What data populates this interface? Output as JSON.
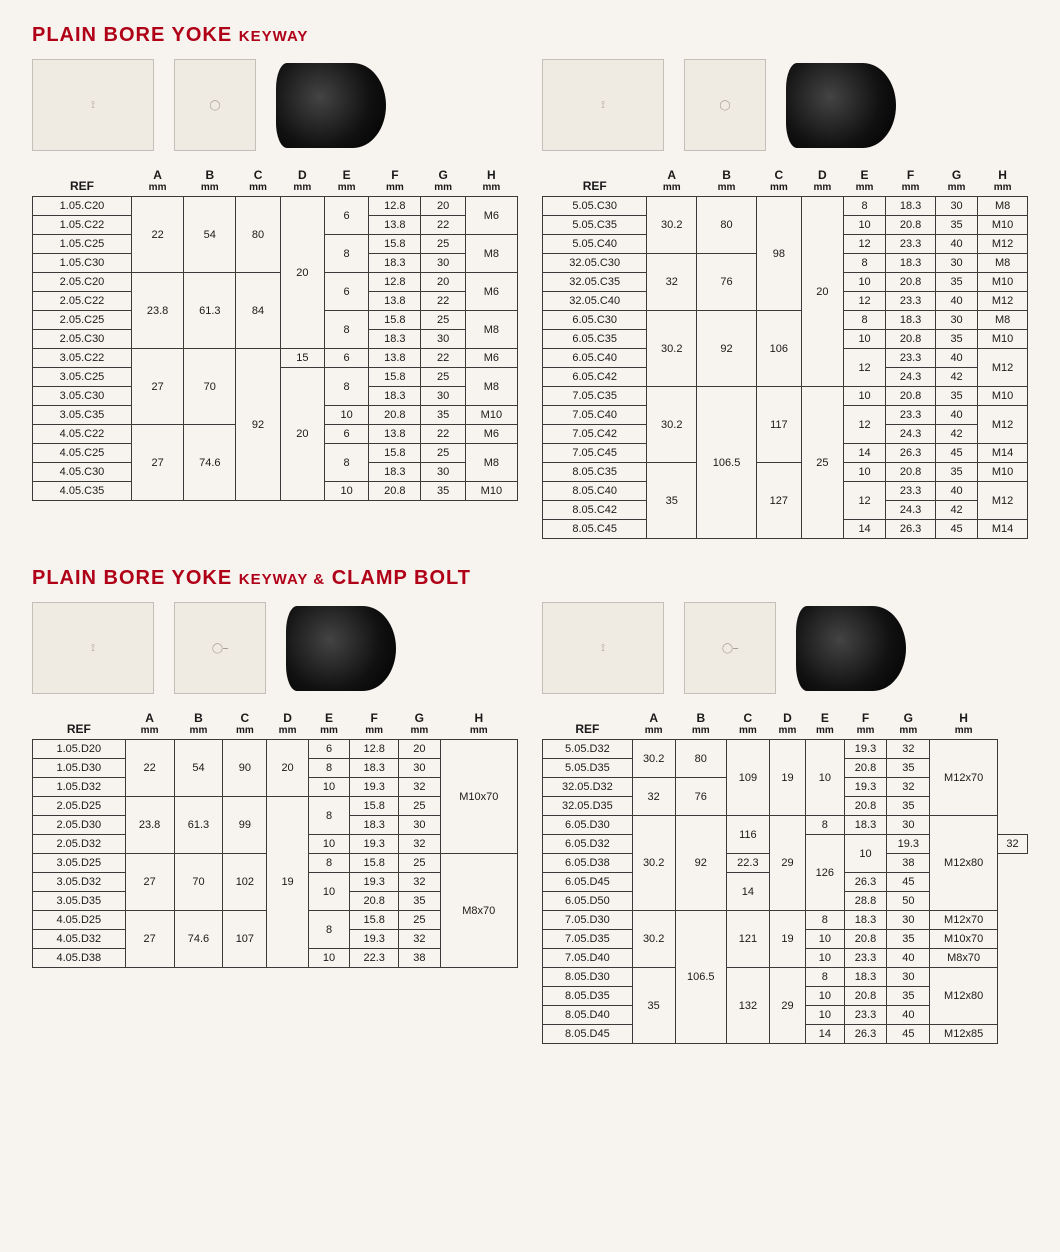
{
  "colors": {
    "title": "#b00018",
    "border": "#3a3a3a",
    "bg": "#f7f3ee"
  },
  "section1": {
    "title_big": "PLAIN BORE YOKE",
    "title_small": "KEYWAY",
    "headers": [
      "REF",
      "A",
      "B",
      "C",
      "D",
      "E",
      "F",
      "G",
      "H"
    ],
    "header_unit": "mm",
    "tableLeft": [
      {
        "ref": "1.05.C20",
        "A": "22",
        "B": "54",
        "C": "80",
        "D": "20",
        "E": "6",
        "F": "12.8",
        "G": "20",
        "H": "M6",
        "spanA": 4,
        "spanB": 4,
        "spanC": 4,
        "spanD": 8,
        "spanE": 2,
        "spanH": 2
      },
      {
        "ref": "1.05.C22",
        "F": "13.8",
        "G": "22"
      },
      {
        "ref": "1.05.C25",
        "E": "8",
        "F": "15.8",
        "G": "25",
        "H": "M8",
        "spanE": 2,
        "spanH": 2
      },
      {
        "ref": "1.05.C30",
        "F": "18.3",
        "G": "30"
      },
      {
        "ref": "2.05.C20",
        "A": "23.8",
        "B": "61.3",
        "C": "84",
        "E": "6",
        "F": "12.8",
        "G": "20",
        "H": "M6",
        "spanA": 4,
        "spanB": 4,
        "spanC": 4,
        "spanE": 2,
        "spanH": 2
      },
      {
        "ref": "2.05.C22",
        "F": "13.8",
        "G": "22"
      },
      {
        "ref": "2.05.C25",
        "E": "8",
        "F": "15.8",
        "G": "25",
        "H": "M8",
        "spanE": 2,
        "spanH": 2
      },
      {
        "ref": "2.05.C30",
        "F": "18.3",
        "G": "30"
      },
      {
        "ref": "3.05.C22",
        "A": "27",
        "B": "70",
        "C": "92",
        "D": "15",
        "E": "6",
        "F": "13.8",
        "G": "22",
        "H": "M6",
        "spanA": 4,
        "spanB": 4,
        "spanC": 8
      },
      {
        "ref": "3.05.C25",
        "D": "20",
        "E": "8",
        "F": "15.8",
        "G": "25",
        "H": "M8",
        "spanD": 7,
        "spanE": 2,
        "spanH": 2
      },
      {
        "ref": "3.05.C30",
        "F": "18.3",
        "G": "30"
      },
      {
        "ref": "3.05.C35",
        "E": "10",
        "F": "20.8",
        "G": "35",
        "H": "M10"
      },
      {
        "ref": "4.05.C22",
        "A": "27",
        "B": "74.6",
        "E": "6",
        "F": "13.8",
        "G": "22",
        "H": "M6",
        "spanA": 4,
        "spanB": 4
      },
      {
        "ref": "4.05.C25",
        "E": "8",
        "F": "15.8",
        "G": "25",
        "H": "M8",
        "spanE": 2,
        "spanH": 2
      },
      {
        "ref": "4.05.C30",
        "F": "18.3",
        "G": "30"
      },
      {
        "ref": "4.05.C35",
        "E": "10",
        "F": "20.8",
        "G": "35",
        "H": "M10"
      }
    ],
    "tableRight": [
      {
        "ref": "5.05.C30",
        "A": "30.2",
        "B": "80",
        "C": "98",
        "D": "20",
        "E": "8",
        "F": "18.3",
        "G": "30",
        "H": "M8",
        "spanA": 3,
        "spanB": 3,
        "spanC": 6,
        "spanD": 10
      },
      {
        "ref": "5.05.C35",
        "E": "10",
        "F": "20.8",
        "G": "35",
        "H": "M10"
      },
      {
        "ref": "5.05.C40",
        "E": "12",
        "F": "23.3",
        "G": "40",
        "H": "M12"
      },
      {
        "ref": "32.05.C30",
        "A": "32",
        "B": "76",
        "E": "8",
        "F": "18.3",
        "G": "30",
        "H": "M8",
        "spanA": 3,
        "spanB": 3
      },
      {
        "ref": "32.05.C35",
        "E": "10",
        "F": "20.8",
        "G": "35",
        "H": "M10"
      },
      {
        "ref": "32.05.C40",
        "E": "12",
        "F": "23.3",
        "G": "40",
        "H": "M12"
      },
      {
        "ref": "6.05.C30",
        "A": "30.2",
        "B": "92",
        "C": "106",
        "E": "8",
        "F": "18.3",
        "G": "30",
        "H": "M8",
        "spanA": 4,
        "spanB": 4,
        "spanC": 4
      },
      {
        "ref": "6.05.C35",
        "E": "10",
        "F": "20.8",
        "G": "35",
        "H": "M10"
      },
      {
        "ref": "6.05.C40",
        "E": "12",
        "F": "23.3",
        "G": "40",
        "H": "M12",
        "spanE": 2,
        "spanH": 2
      },
      {
        "ref": "6.05.C42",
        "F": "24.3",
        "G": "42"
      },
      {
        "ref": "7.05.C35",
        "A": "30.2",
        "B": "106.5",
        "C": "117",
        "D": "25",
        "E": "10",
        "F": "20.8",
        "G": "35",
        "H": "M10",
        "spanA": 4,
        "spanB": 8,
        "spanC": 4,
        "spanD": 8
      },
      {
        "ref": "7.05.C40",
        "E": "12",
        "F": "23.3",
        "G": "40",
        "H": "M12",
        "spanE": 2,
        "spanH": 2
      },
      {
        "ref": "7.05.C42",
        "F": "24.3",
        "G": "42"
      },
      {
        "ref": "7.05.C45",
        "E": "14",
        "F": "26.3",
        "G": "45",
        "H": "M14"
      },
      {
        "ref": "8.05.C35",
        "A": "35",
        "C": "127",
        "E": "10",
        "F": "20.8",
        "G": "35",
        "H": "M10",
        "spanA": 4,
        "spanC": 4
      },
      {
        "ref": "8.05.C40",
        "E": "12",
        "F": "23.3",
        "G": "40",
        "H": "M12",
        "spanE": 2,
        "spanH": 2
      },
      {
        "ref": "8.05.C42",
        "F": "24.3",
        "G": "42"
      },
      {
        "ref": "8.05.C45",
        "E": "14",
        "F": "26.3",
        "G": "45",
        "H": "M14"
      }
    ]
  },
  "section2": {
    "title_big1": "PLAIN BORE YOKE",
    "title_small": "KEYWAY &",
    "title_big2": "CLAMP BOLT",
    "headers": [
      "REF",
      "A",
      "B",
      "C",
      "D",
      "E",
      "F",
      "G",
      "H"
    ],
    "header_unit": "mm",
    "tableLeft": [
      {
        "ref": "1.05.D20",
        "A": "22",
        "B": "54",
        "C": "90",
        "D": "20",
        "E": "6",
        "F": "12.8",
        "G": "20",
        "H": "M10x70",
        "spanA": 3,
        "spanB": 3,
        "spanC": 3,
        "spanD": 3,
        "spanH": 6
      },
      {
        "ref": "1.05.D30",
        "E": "8",
        "F": "18.3",
        "G": "30"
      },
      {
        "ref": "1.05.D32",
        "E": "10",
        "F": "19.3",
        "G": "32"
      },
      {
        "ref": "2.05.D25",
        "A": "23.8",
        "B": "61.3",
        "C": "99",
        "D": "19",
        "E": "8",
        "F": "15.8",
        "G": "25",
        "spanA": 3,
        "spanB": 3,
        "spanC": 3,
        "spanD": 9,
        "spanE": 2
      },
      {
        "ref": "2.05.D30",
        "F": "18.3",
        "G": "30"
      },
      {
        "ref": "2.05.D32",
        "E": "10",
        "F": "19.3",
        "G": "32"
      },
      {
        "ref": "3.05.D25",
        "A": "27",
        "B": "70",
        "C": "102",
        "E": "8",
        "F": "15.8",
        "G": "25",
        "H": "M8x70",
        "spanA": 3,
        "spanB": 3,
        "spanC": 3,
        "spanH": 6
      },
      {
        "ref": "3.05.D32",
        "E": "10",
        "F": "19.3",
        "G": "32",
        "spanE": 2
      },
      {
        "ref": "3.05.D35",
        "F": "20.8",
        "G": "35"
      },
      {
        "ref": "4.05.D25",
        "A": "27",
        "B": "74.6",
        "C": "107",
        "E": "8",
        "F": "15.8",
        "G": "25",
        "spanA": 3,
        "spanB": 3,
        "spanC": 3,
        "spanE": 2
      },
      {
        "ref": "4.05.D32",
        "F": "19.3",
        "G": "32"
      },
      {
        "ref": "4.05.D38",
        "E": "10",
        "F": "22.3",
        "G": "38"
      }
    ],
    "tableRight": [
      {
        "ref": "5.05.D32",
        "A": "30.2",
        "B": "80",
        "C": "109",
        "D": "19",
        "E": "10",
        "F": "19.3",
        "G": "32",
        "H": "M12x70",
        "spanA": 2,
        "spanB": 2,
        "spanC": 4,
        "spanD": 4,
        "spanE": 4,
        "spanH": 4
      },
      {
        "ref": "5.05.D35",
        "F": "20.8",
        "G": "35"
      },
      {
        "ref": "32.05.D32",
        "A": "32",
        "B": "76",
        "F": "19.3",
        "G": "32",
        "spanA": 2,
        "spanB": 2
      },
      {
        "ref": "32.05.D35",
        "F": "20.8",
        "G": "35"
      },
      {
        "ref": "6.05.D30",
        "A": "30.2",
        "B": "92",
        "C": "116",
        "D": "29",
        "E": "8",
        "F": "18.3",
        "G": "30",
        "H": "M12x80",
        "spanA": 5,
        "spanB": 5,
        "spanC": 2,
        "spanD": 5,
        "spanH": 5
      },
      {
        "ref": "6.05.D32",
        "C": "126",
        "E": "10",
        "F": "19.3",
        "G": "32",
        "spanC": 4,
        "spanE": 2
      },
      {
        "ref": "6.05.D38",
        "F": "22.3",
        "G": "38"
      },
      {
        "ref": "6.05.D45",
        "E": "14",
        "F": "26.3",
        "G": "45",
        "spanE": 2
      },
      {
        "ref": "6.05.D50",
        "F": "28.8",
        "G": "50"
      },
      {
        "ref": "7.05.D30",
        "A": "30.2",
        "B": "106.5",
        "C": "121",
        "D": "19",
        "E": "8",
        "F": "18.3",
        "G": "30",
        "H": "M12x70",
        "spanA": 3,
        "spanB": 7,
        "spanC": 3,
        "spanD": 3
      },
      {
        "ref": "7.05.D35",
        "E": "10",
        "F": "20.8",
        "G": "35",
        "H": "M10x70"
      },
      {
        "ref": "7.05.D40",
        "E": "10",
        "F": "23.3",
        "G": "40",
        "H": "M8x70"
      },
      {
        "ref": "8.05.D30",
        "A": "35",
        "C": "132",
        "D": "29",
        "E": "8",
        "F": "18.3",
        "G": "30",
        "H": "M12x80",
        "spanA": 4,
        "spanC": 4,
        "spanD": 4,
        "spanH": 3
      },
      {
        "ref": "8.05.D35",
        "E": "10",
        "F": "20.8",
        "G": "35"
      },
      {
        "ref": "8.05.D40",
        "E": "10",
        "F": "23.3",
        "G": "40"
      },
      {
        "ref": "8.05.D45",
        "E": "14",
        "F": "26.3",
        "G": "45",
        "H": "M12x85"
      }
    ]
  }
}
